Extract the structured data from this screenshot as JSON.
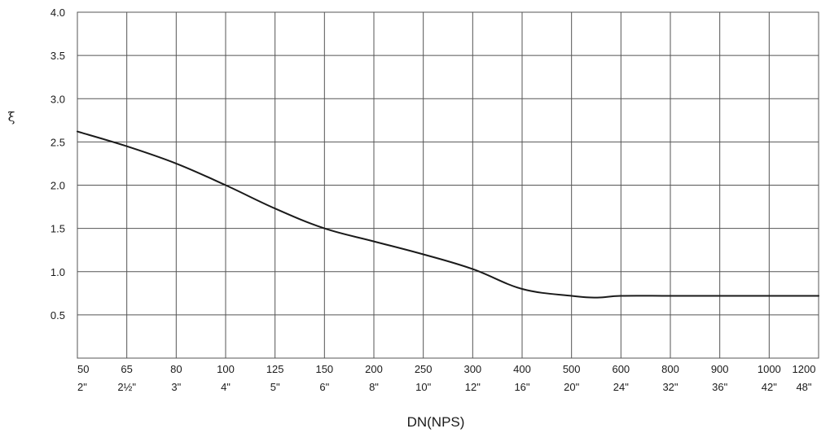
{
  "chart_data": {
    "type": "line",
    "xlabel": "DN(NPS)",
    "ylabel": "ξ",
    "ylim": [
      0,
      4.0
    ],
    "yticks": [
      "0.5",
      "1.0",
      "1.5",
      "2.0",
      "2.5",
      "3.0",
      "3.5",
      "4.0"
    ],
    "categories_dn": [
      "50",
      "65",
      "80",
      "100",
      "125",
      "150",
      "200",
      "250",
      "300",
      "400",
      "500",
      "600",
      "800",
      "900",
      "1000",
      "1200"
    ],
    "categories_nps": [
      "2\"",
      "2½\"",
      "3\"",
      "4\"",
      "5\"",
      "6\"",
      "8\"",
      "10\"",
      "12\"",
      "16\"",
      "20\"",
      "24\"",
      "32\"",
      "36\"",
      "42\"",
      "48\""
    ],
    "grid": true,
    "series": [
      {
        "x": [
          "50",
          "65",
          "80",
          "100",
          "125",
          "150",
          "200",
          "250",
          "300",
          "400",
          "500",
          "550",
          "600",
          "800",
          "900",
          "1000",
          "1200"
        ],
        "values": [
          2.62,
          2.45,
          2.25,
          2.0,
          1.73,
          1.5,
          1.35,
          1.2,
          1.03,
          0.8,
          0.72,
          0.7,
          0.72,
          0.72,
          0.72,
          0.72,
          0.72
        ]
      }
    ]
  }
}
